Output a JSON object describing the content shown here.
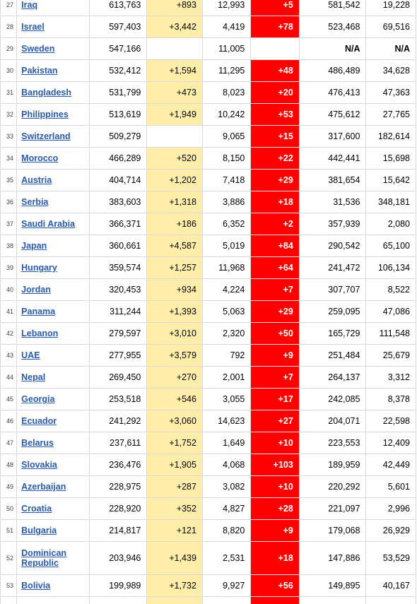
{
  "rows": [
    {
      "rank": "27",
      "country": "Iraq",
      "total": "613,763",
      "new_cases": "+893",
      "deaths": "12,993",
      "new_deaths": "+5",
      "recovered": "581,542",
      "active": "19,228"
    },
    {
      "rank": "28",
      "country": "Israel",
      "total": "597,403",
      "new_cases": "+3,442",
      "deaths": "4,419",
      "new_deaths": "+78",
      "recovered": "523,468",
      "active": "69,516"
    },
    {
      "rank": "29",
      "country": "Sweden",
      "total": "547,166",
      "new_cases": "",
      "deaths": "11,005",
      "new_deaths": "",
      "recovered": "N/A",
      "active": "N/A"
    },
    {
      "rank": "30",
      "country": "Pakistan",
      "total": "532,412",
      "new_cases": "+1,594",
      "deaths": "11,295",
      "new_deaths": "+48",
      "recovered": "486,489",
      "active": "34,628"
    },
    {
      "rank": "31",
      "country": "Bangladesh",
      "total": "531,799",
      "new_cases": "+473",
      "deaths": "8,023",
      "new_deaths": "+20",
      "recovered": "476,413",
      "active": "47,363"
    },
    {
      "rank": "32",
      "country": "Philippines",
      "total": "513,619",
      "new_cases": "+1,949",
      "deaths": "10,242",
      "new_deaths": "+53",
      "recovered": "475,612",
      "active": "27,765"
    },
    {
      "rank": "33",
      "country": "Switzerland",
      "total": "509,279",
      "new_cases": "",
      "deaths": "9,065",
      "new_deaths": "+15",
      "recovered": "317,600",
      "active": "182,614"
    },
    {
      "rank": "34",
      "country": "Morocco",
      "total": "466,289",
      "new_cases": "+520",
      "deaths": "8,150",
      "new_deaths": "+22",
      "recovered": "442,441",
      "active": "15,698"
    },
    {
      "rank": "35",
      "country": "Austria",
      "total": "404,714",
      "new_cases": "+1,202",
      "deaths": "7,418",
      "new_deaths": "+29",
      "recovered": "381,654",
      "active": "15,642"
    },
    {
      "rank": "36",
      "country": "Serbia",
      "total": "383,603",
      "new_cases": "+1,318",
      "deaths": "3,886",
      "new_deaths": "+18",
      "recovered": "31,536",
      "active": "348,181"
    },
    {
      "rank": "37",
      "country": "Saudi Arabia",
      "total": "366,371",
      "new_cases": "+186",
      "deaths": "6,352",
      "new_deaths": "+2",
      "recovered": "357,939",
      "active": "2,080"
    },
    {
      "rank": "38",
      "country": "Japan",
      "total": "360,661",
      "new_cases": "+4,587",
      "deaths": "5,019",
      "new_deaths": "+84",
      "recovered": "290,542",
      "active": "65,100"
    },
    {
      "rank": "39",
      "country": "Hungary",
      "total": "359,574",
      "new_cases": "+1,257",
      "deaths": "11,968",
      "new_deaths": "+64",
      "recovered": "241,472",
      "active": "106,134"
    },
    {
      "rank": "40",
      "country": "Jordan",
      "total": "320,453",
      "new_cases": "+934",
      "deaths": "4,224",
      "new_deaths": "+7",
      "recovered": "307,707",
      "active": "8,522"
    },
    {
      "rank": "41",
      "country": "Panama",
      "total": "311,244",
      "new_cases": "+1,393",
      "deaths": "5,063",
      "new_deaths": "+29",
      "recovered": "259,095",
      "active": "47,086"
    },
    {
      "rank": "42",
      "country": "Lebanon",
      "total": "279,597",
      "new_cases": "+3,010",
      "deaths": "2,320",
      "new_deaths": "+50",
      "recovered": "165,729",
      "active": "111,548"
    },
    {
      "rank": "43",
      "country": "UAE",
      "total": "277,955",
      "new_cases": "+3,579",
      "deaths": "792",
      "new_deaths": "+9",
      "recovered": "251,484",
      "active": "25,679"
    },
    {
      "rank": "44",
      "country": "Nepal",
      "total": "269,450",
      "new_cases": "+270",
      "deaths": "2,001",
      "new_deaths": "+7",
      "recovered": "264,137",
      "active": "3,312"
    },
    {
      "rank": "45",
      "country": "Georgia",
      "total": "253,518",
      "new_cases": "+546",
      "deaths": "3,055",
      "new_deaths": "+17",
      "recovered": "242,085",
      "active": "8,378"
    },
    {
      "rank": "46",
      "country": "Ecuador",
      "total": "241,292",
      "new_cases": "+3,060",
      "deaths": "14,623",
      "new_deaths": "+27",
      "recovered": "204,071",
      "active": "22,598"
    },
    {
      "rank": "47",
      "country": "Belarus",
      "total": "237,611",
      "new_cases": "+1,752",
      "deaths": "1,649",
      "new_deaths": "+10",
      "recovered": "223,553",
      "active": "12,409"
    },
    {
      "rank": "48",
      "country": "Slovakia",
      "total": "236,476",
      "new_cases": "+1,905",
      "deaths": "4,068",
      "new_deaths": "+103",
      "recovered": "189,959",
      "active": "42,449"
    },
    {
      "rank": "49",
      "country": "Azerbaijan",
      "total": "228,975",
      "new_cases": "+287",
      "deaths": "3,082",
      "new_deaths": "+10",
      "recovered": "220,292",
      "active": "5,601"
    },
    {
      "rank": "50",
      "country": "Croatia",
      "total": "228,920",
      "new_cases": "+352",
      "deaths": "4,827",
      "new_deaths": "+28",
      "recovered": "221,097",
      "active": "2,996"
    },
    {
      "rank": "51",
      "country": "Bulgaria",
      "total": "214,817",
      "new_cases": "+121",
      "deaths": "8,820",
      "new_deaths": "+9",
      "recovered": "179,068",
      "active": "26,929"
    },
    {
      "rank": "52",
      "country": "Dominican Republic",
      "total": "203,946",
      "new_cases": "+1,439",
      "deaths": "2,531",
      "new_deaths": "+18",
      "recovered": "147,886",
      "active": "53,529",
      "tall": true
    },
    {
      "rank": "53",
      "country": "Bolivia",
      "total": "199,989",
      "new_cases": "+1,732",
      "deaths": "9,927",
      "new_deaths": "+56",
      "recovered": "149,895",
      "active": "40,167"
    },
    {
      "rank": "",
      "country": "",
      "total": "",
      "new_cases": "",
      "deaths": "",
      "new_deaths": "",
      "recovered": "",
      "active": "",
      "filler": true
    }
  ]
}
